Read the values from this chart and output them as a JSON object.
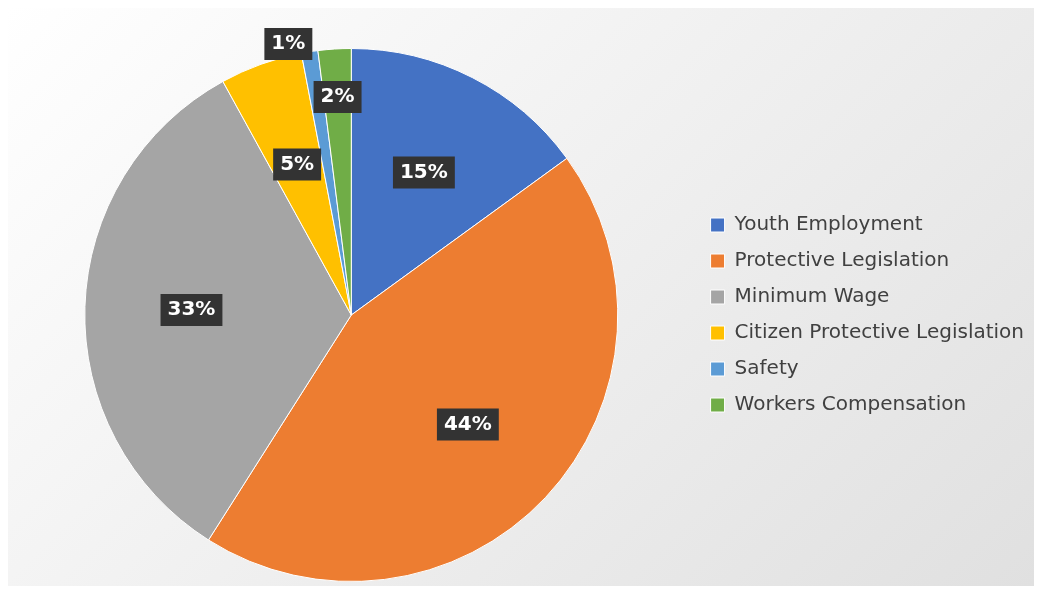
{
  "chart_data": {
    "type": "pie",
    "categories": [
      "Youth Employment",
      "Protective Legislation",
      "Minimum Wage",
      "Citizen Protective Legislation",
      "Safety",
      "Workers Compensation"
    ],
    "values": [
      15,
      44,
      33,
      5,
      1,
      2
    ],
    "colors": [
      "#4472c4",
      "#ed7d31",
      "#a5a5a5",
      "#ffc000",
      "#5b9bd5",
      "#70ad47"
    ],
    "value_labels": [
      "15%",
      "44%",
      "33%",
      "5%",
      "1%",
      "2%"
    ],
    "legend": "right"
  }
}
